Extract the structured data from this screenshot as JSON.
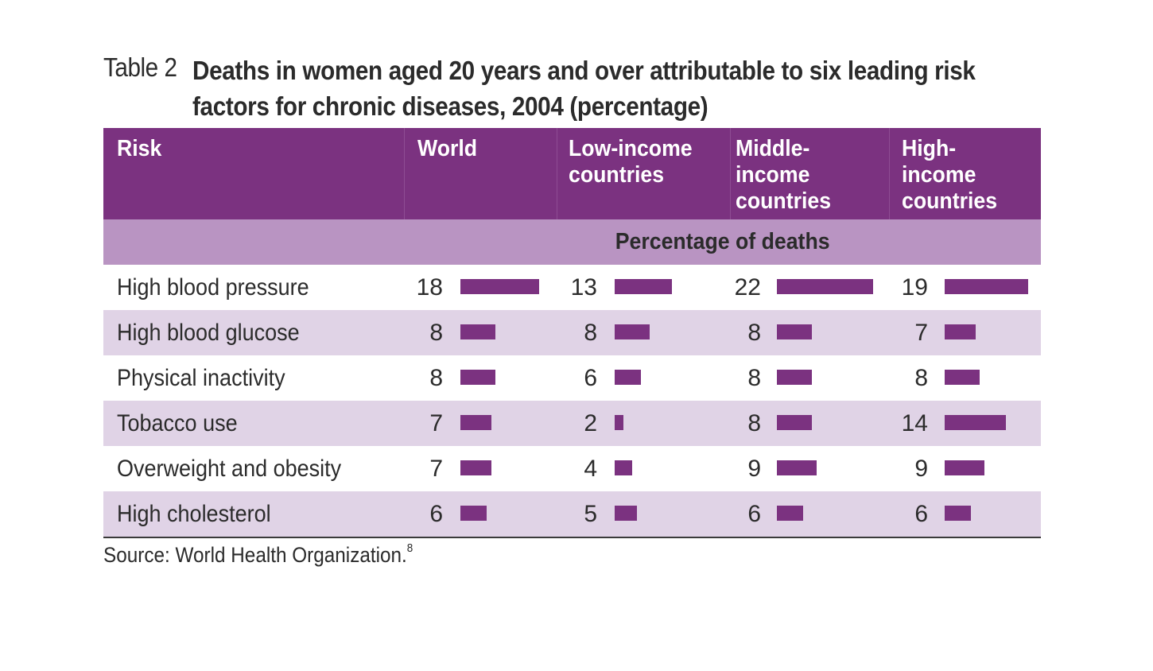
{
  "title": {
    "label": "Table 2",
    "text": "Deaths in women aged 20 years and over attributable to six leading risk factors for chronic diseases, 2004 (percentage)"
  },
  "columns": [
    "Risk",
    "World",
    "Low-income countries",
    "Middle-income countries",
    "High-income countries"
  ],
  "column_lines": [
    [
      "Risk"
    ],
    [
      "World"
    ],
    [
      "Low-income",
      "countries"
    ],
    [
      "Middle-",
      "income",
      "countries"
    ],
    [
      "High-",
      "income",
      "countries"
    ]
  ],
  "subheader": "Percentage of deaths",
  "source": {
    "text": "Source: World Health Organization.",
    "note": "8"
  },
  "colors": {
    "header_bg": "#7b3280",
    "subheader_bg": "#b994c2",
    "row_shade": "#e0d3e6",
    "bar": "#7b3280"
  },
  "chart_data": {
    "type": "table",
    "title": "Deaths in women aged 20 years and over attributable to six leading risk factors for chronic diseases, 2004 (percentage)",
    "categories": [
      "High blood pressure",
      "High blood glucose",
      "Physical inactivity",
      "Tobacco use",
      "Overweight and obesity",
      "High cholesterol"
    ],
    "series": [
      {
        "name": "World",
        "values": [
          18,
          8,
          8,
          7,
          7,
          6
        ]
      },
      {
        "name": "Low-income countries",
        "values": [
          13,
          8,
          6,
          2,
          4,
          5
        ]
      },
      {
        "name": "Middle-income countries",
        "values": [
          22,
          8,
          8,
          8,
          9,
          6
        ]
      },
      {
        "name": "High-income countries",
        "values": [
          19,
          7,
          8,
          14,
          9,
          6
        ]
      }
    ],
    "unit": "Percentage of deaths"
  }
}
